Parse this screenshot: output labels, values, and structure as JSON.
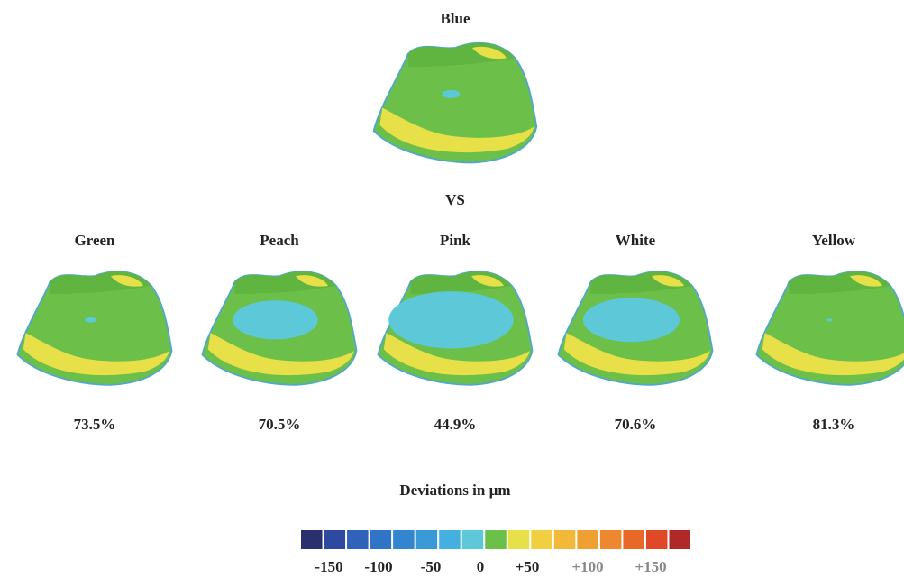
{
  "reference": {
    "label": "Blue"
  },
  "versus": "VS",
  "models": [
    {
      "name": "Green",
      "percent": "73.5%"
    },
    {
      "name": "Peach",
      "percent": "70.5%"
    },
    {
      "name": "Pink",
      "percent": "44.9%"
    },
    {
      "name": "White",
      "percent": "70.6%"
    },
    {
      "name": "Yellow",
      "percent": "81.3%"
    }
  ],
  "legend": {
    "title": "Deviations in µm",
    "labels": [
      "-150",
      "-100",
      "-50",
      "0",
      "+50",
      "+100",
      "+150"
    ]
  }
}
